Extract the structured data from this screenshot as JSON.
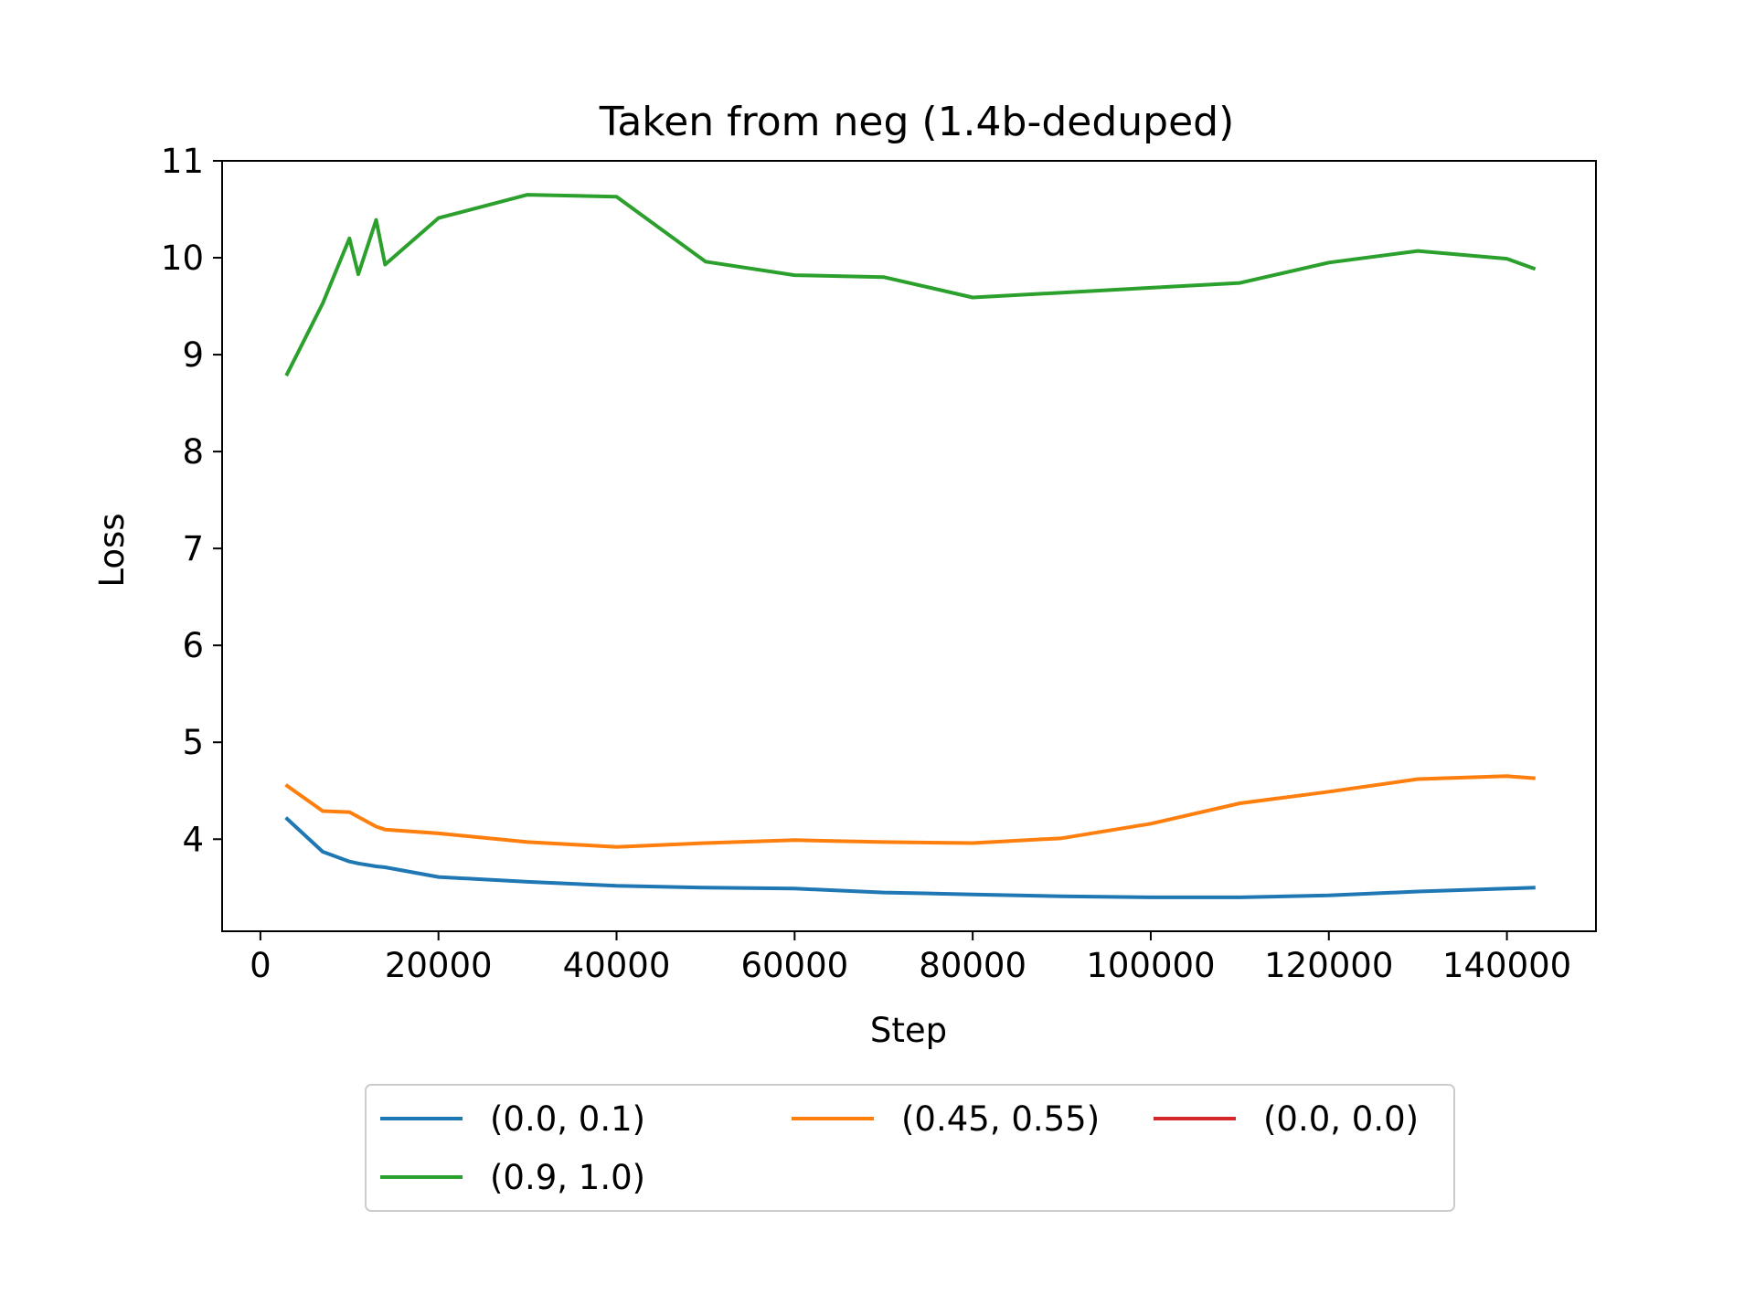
{
  "chart_data": {
    "type": "line",
    "title": "Taken from neg (1.4b-deduped)",
    "xlabel": "Step",
    "ylabel": "Loss",
    "xlim": [
      -4300,
      150000
    ],
    "ylim": [
      3.05,
      11
    ],
    "xticks": [
      0,
      20000,
      40000,
      60000,
      80000,
      100000,
      120000,
      140000
    ],
    "xtick_labels": [
      "0",
      "20000",
      "40000",
      "60000",
      "80000",
      "100000",
      "120000",
      "140000"
    ],
    "yticks": [
      4,
      5,
      6,
      7,
      8,
      9,
      10,
      11
    ],
    "ytick_labels": [
      "4",
      "5",
      "6",
      "7",
      "8",
      "9",
      "10",
      "11"
    ],
    "grid": false,
    "legend_placement": "bottom-center",
    "series": [
      {
        "name": "(0.0, 0.1)",
        "color": "#1f77b4",
        "x": [
          3000,
          7000,
          10000,
          11000,
          13000,
          14000,
          20000,
          30000,
          40000,
          50000,
          60000,
          70000,
          80000,
          90000,
          100000,
          110000,
          120000,
          130000,
          140000,
          143000
        ],
        "y": [
          4.21,
          3.87,
          3.77,
          3.75,
          3.72,
          3.71,
          3.61,
          3.56,
          3.52,
          3.5,
          3.49,
          3.45,
          3.43,
          3.41,
          3.4,
          3.4,
          3.42,
          3.46,
          3.49,
          3.5
        ]
      },
      {
        "name": "(0.45, 0.55)",
        "color": "#ff7f0e",
        "x": [
          3000,
          7000,
          10000,
          11000,
          13000,
          14000,
          20000,
          30000,
          40000,
          50000,
          60000,
          70000,
          80000,
          90000,
          100000,
          110000,
          120000,
          130000,
          140000,
          143000
        ],
        "y": [
          4.55,
          4.29,
          4.28,
          4.23,
          4.13,
          4.1,
          4.06,
          3.97,
          3.92,
          3.96,
          3.99,
          3.97,
          3.96,
          4.01,
          4.16,
          4.37,
          4.49,
          4.62,
          4.65,
          4.63
        ]
      },
      {
        "name": "(0.9, 1.0)",
        "color": "#2ca02c",
        "x": [
          3000,
          7000,
          10000,
          11000,
          13000,
          14000,
          20000,
          30000,
          40000,
          50000,
          60000,
          70000,
          80000,
          90000,
          100000,
          110000,
          120000,
          130000,
          140000,
          143000
        ],
        "y": [
          8.8,
          9.53,
          10.2,
          9.83,
          10.39,
          9.93,
          10.41,
          10.65,
          10.63,
          9.96,
          9.82,
          9.8,
          9.59,
          9.64,
          9.69,
          9.74,
          9.95,
          10.07,
          9.99,
          9.89
        ]
      },
      {
        "name": "(0.0, 0.0)",
        "color": "#d62728",
        "x": [],
        "y": []
      }
    ]
  }
}
